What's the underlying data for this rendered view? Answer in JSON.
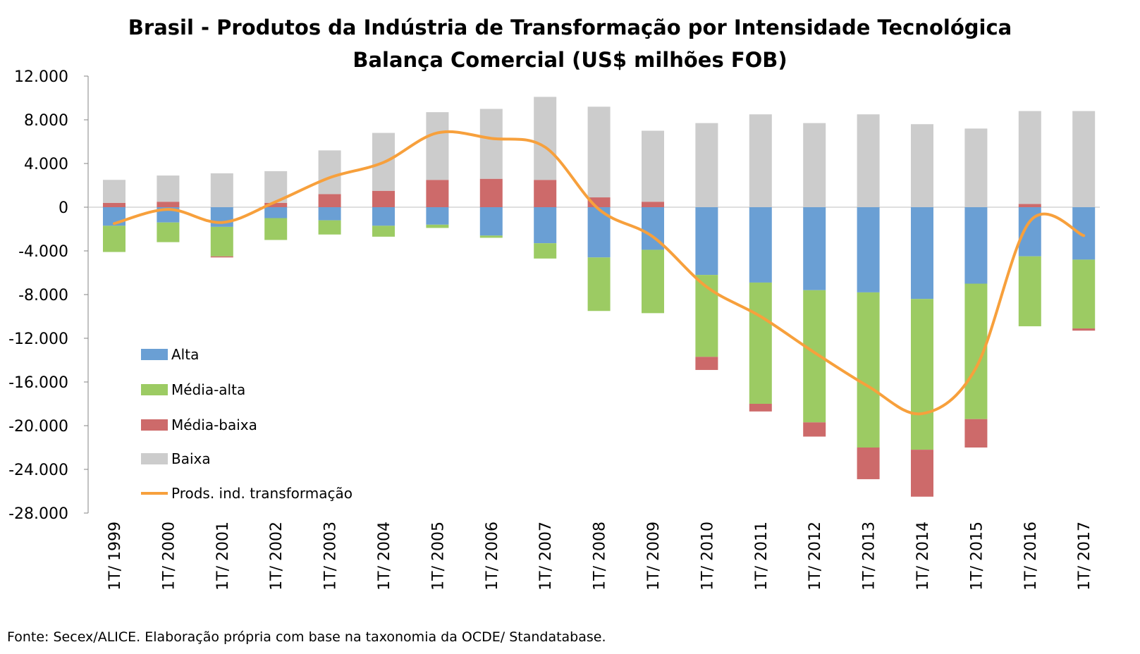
{
  "chart_data": {
    "type": "bar",
    "stacked": true,
    "title": "Brasil - Produtos da Indústria de Transformação por Intensidade Tecnológica",
    "subtitle": "Balança Comercial (US$ milhões FOB)",
    "categories": [
      "1T/ 1999",
      "1T/ 2000",
      "1T/ 2001",
      "1T/ 2002",
      "1T/ 2003",
      "1T/ 2004",
      "1T/ 2005",
      "1T/ 2006",
      "1T/ 2007",
      "1T/ 2008",
      "1T/ 2009",
      "1T/ 2010",
      "1T/ 2011",
      "1T/ 2012",
      "1T/ 2013",
      "1T/ 2014",
      "1T/ 2015",
      "1T/ 2016",
      "1T/ 2017"
    ],
    "ylim": [
      -28000,
      12000
    ],
    "yticks": [
      12000,
      8000,
      4000,
      0,
      -4000,
      -8000,
      -12000,
      -16000,
      -20000,
      -24000,
      -28000
    ],
    "ytick_labels": [
      "12.000",
      "8.000",
      "4.000",
      "0",
      "-4.000",
      "-8.000",
      "-12.000",
      "-16.000",
      "-20.000",
      "-24.000",
      "-28.000"
    ],
    "grid": "zero-line only",
    "legend_position": "left-bottom inside",
    "series": [
      {
        "name": "Alta",
        "kind": "bar",
        "color": "#6a9fd4",
        "values": [
          -1700,
          -1400,
          -1800,
          -1000,
          -1200,
          -1700,
          -1600,
          -2600,
          -3300,
          -4600,
          -3900,
          -6200,
          -6900,
          -7600,
          -7800,
          -8400,
          -7000,
          -4500,
          -4800
        ]
      },
      {
        "name": "Média-alta",
        "kind": "bar",
        "color": "#9ccb63",
        "values": [
          -2400,
          -1800,
          -2700,
          -2000,
          -1300,
          -1000,
          -300,
          -200,
          -1400,
          -4900,
          -5800,
          -7500,
          -11100,
          -12100,
          -14200,
          -13800,
          -12400,
          -6400,
          -6300
        ]
      },
      {
        "name": "Média-baixa",
        "kind": "bar",
        "color": "#cd6a6a",
        "values": [
          400,
          500,
          -100,
          400,
          1200,
          1500,
          2500,
          2600,
          2500,
          900,
          500,
          -1200,
          -700,
          -1300,
          -2900,
          -4300,
          -2600,
          300,
          -200
        ]
      },
      {
        "name": "Baixa",
        "kind": "bar",
        "color": "#cccccc",
        "values": [
          2100,
          2400,
          3100,
          2900,
          4000,
          5300,
          6200,
          6400,
          7600,
          8300,
          6500,
          7700,
          8500,
          7700,
          8500,
          7600,
          7200,
          8500,
          8800
        ]
      },
      {
        "name": "Prods. ind. transformação",
        "kind": "line",
        "color": "#f7a03c",
        "values": [
          -1500,
          -200,
          -1400,
          500,
          2700,
          4100,
          6800,
          6300,
          5500,
          -200,
          -2700,
          -7300,
          -10000,
          -13300,
          -16400,
          -18900,
          -14700,
          -1300,
          -2600
        ]
      }
    ]
  },
  "source_note": "Fonte: Secex/ALICE. Elaboração própria com base na taxonomia da OCDE/ Standatabase."
}
